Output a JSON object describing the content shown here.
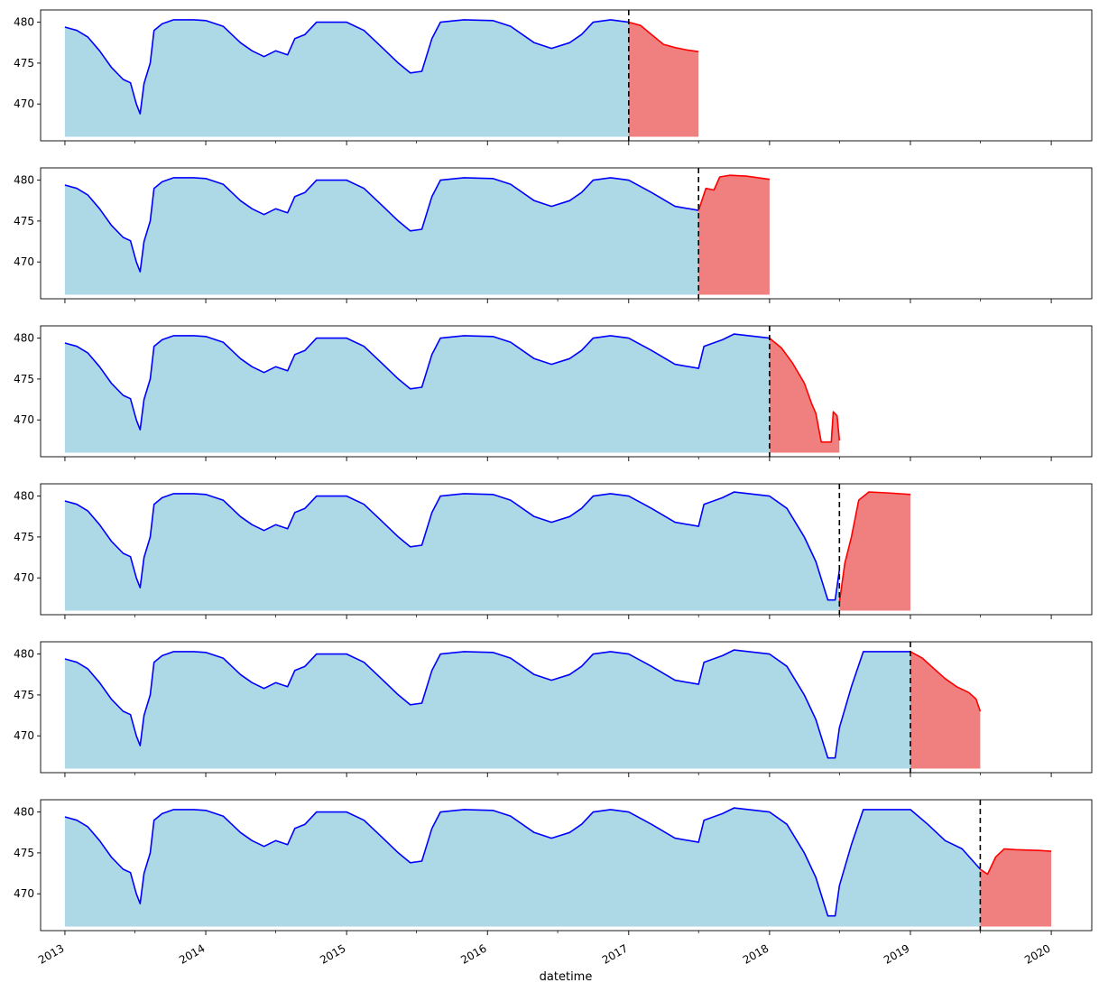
{
  "chart_data": {
    "type": "area",
    "layout": "6 stacked panels sharing the date x-axis",
    "xlabel": "datetime",
    "x_ticks": [
      "2013",
      "2014",
      "2015",
      "2016",
      "2017",
      "2018",
      "2019",
      "2020"
    ],
    "x_range": [
      "2012-10-30",
      "2020-04-15"
    ],
    "ylim": [
      465.5,
      481.5
    ],
    "y_ticks": [
      470,
      475,
      480
    ],
    "fill_baseline": 466,
    "colors": {
      "history_line": "#0000ff",
      "history_fill": "#add8e6",
      "forecast_line": "#ff0000",
      "forecast_fill": "#f08080",
      "cutoff_line": "#000000"
    },
    "history": [
      [
        "2013-01-01",
        479.4
      ],
      [
        "2013-02-01",
        479.0
      ],
      [
        "2013-03-01",
        478.2
      ],
      [
        "2013-04-01",
        476.5
      ],
      [
        "2013-05-01",
        474.5
      ],
      [
        "2013-06-01",
        473.0
      ],
      [
        "2013-06-20",
        472.6
      ],
      [
        "2013-07-05",
        470.0
      ],
      [
        "2013-07-15",
        468.8
      ],
      [
        "2013-07-25",
        472.5
      ],
      [
        "2013-08-10",
        475.0
      ],
      [
        "2013-08-20",
        479.0
      ],
      [
        "2013-09-10",
        479.8
      ],
      [
        "2013-10-10",
        480.3
      ],
      [
        "2013-12-01",
        480.3
      ],
      [
        "2014-01-01",
        480.2
      ],
      [
        "2014-02-15",
        479.5
      ],
      [
        "2014-04-01",
        477.5
      ],
      [
        "2014-05-01",
        476.5
      ],
      [
        "2014-06-01",
        475.8
      ],
      [
        "2014-07-01",
        476.5
      ],
      [
        "2014-08-01",
        476.0
      ],
      [
        "2014-08-20",
        478.0
      ],
      [
        "2014-09-15",
        478.5
      ],
      [
        "2014-10-15",
        480.0
      ],
      [
        "2015-01-01",
        480.0
      ],
      [
        "2015-02-15",
        479.0
      ],
      [
        "2015-04-01",
        477.0
      ],
      [
        "2015-05-15",
        475.0
      ],
      [
        "2015-06-15",
        473.8
      ],
      [
        "2015-07-15",
        474.0
      ],
      [
        "2015-08-10",
        478.0
      ],
      [
        "2015-09-01",
        480.0
      ],
      [
        "2015-11-01",
        480.3
      ],
      [
        "2016-01-15",
        480.2
      ],
      [
        "2016-03-01",
        479.5
      ],
      [
        "2016-05-01",
        477.5
      ],
      [
        "2016-06-15",
        476.8
      ],
      [
        "2016-08-01",
        477.5
      ],
      [
        "2016-09-01",
        478.5
      ],
      [
        "2016-10-01",
        480.0
      ],
      [
        "2016-11-15",
        480.3
      ],
      [
        "2017-01-01",
        480.0
      ],
      [
        "2017-03-01",
        478.5
      ],
      [
        "2017-05-01",
        476.8
      ],
      [
        "2017-07-01",
        476.3
      ],
      [
        "2017-07-15",
        479.0
      ],
      [
        "2017-09-01",
        479.8
      ],
      [
        "2017-10-01",
        480.5
      ],
      [
        "2018-01-01",
        480.0
      ],
      [
        "2018-02-15",
        478.5
      ],
      [
        "2018-04-01",
        475.0
      ],
      [
        "2018-05-01",
        472.0
      ],
      [
        "2018-06-01",
        467.3
      ],
      [
        "2018-06-20",
        467.3
      ],
      [
        "2018-07-01",
        471.0
      ],
      [
        "2018-08-01",
        476.0
      ],
      [
        "2018-09-01",
        480.3
      ],
      [
        "2019-01-01",
        480.3
      ],
      [
        "2019-02-15",
        478.5
      ],
      [
        "2019-04-01",
        476.5
      ],
      [
        "2019-05-15",
        475.5
      ],
      [
        "2019-07-01",
        473.0
      ]
    ],
    "panels": [
      {
        "cutoff": "2017-01-01",
        "forecast": [
          [
            "2017-01-01",
            480.0
          ],
          [
            "2017-02-01",
            479.6
          ],
          [
            "2017-03-01",
            478.5
          ],
          [
            "2017-04-01",
            477.3
          ],
          [
            "2017-05-01",
            476.9
          ],
          [
            "2017-06-01",
            476.6
          ],
          [
            "2017-07-01",
            476.4
          ]
        ]
      },
      {
        "cutoff": "2017-07-01",
        "forecast": [
          [
            "2017-07-01",
            476.3
          ],
          [
            "2017-07-20",
            479.0
          ],
          [
            "2017-08-10",
            478.8
          ],
          [
            "2017-08-25",
            480.4
          ],
          [
            "2017-09-20",
            480.6
          ],
          [
            "2017-11-01",
            480.5
          ],
          [
            "2018-01-01",
            480.1
          ]
        ]
      },
      {
        "cutoff": "2018-01-01",
        "forecast": [
          [
            "2018-01-01",
            480.0
          ],
          [
            "2018-02-01",
            478.8
          ],
          [
            "2018-03-01",
            477.0
          ],
          [
            "2018-04-01",
            474.5
          ],
          [
            "2018-04-20",
            472.0
          ],
          [
            "2018-05-01",
            470.8
          ],
          [
            "2018-05-15",
            467.3
          ],
          [
            "2018-06-10",
            467.3
          ],
          [
            "2018-06-15",
            471.0
          ],
          [
            "2018-06-25",
            470.5
          ],
          [
            "2018-07-01",
            467.5
          ]
        ]
      },
      {
        "cutoff": "2018-07-01",
        "forecast": [
          [
            "2018-07-01",
            467.0
          ],
          [
            "2018-07-15",
            471.8
          ],
          [
            "2018-08-01",
            475.0
          ],
          [
            "2018-08-20",
            479.5
          ],
          [
            "2018-09-15",
            480.5
          ],
          [
            "2018-11-01",
            480.4
          ],
          [
            "2019-01-01",
            480.2
          ]
        ]
      },
      {
        "cutoff": "2019-01-01",
        "forecast": [
          [
            "2019-01-01",
            480.3
          ],
          [
            "2019-02-01",
            479.5
          ],
          [
            "2019-03-01",
            478.3
          ],
          [
            "2019-04-01",
            477.0
          ],
          [
            "2019-05-01",
            476.0
          ],
          [
            "2019-06-01",
            475.3
          ],
          [
            "2019-06-20",
            474.5
          ],
          [
            "2019-07-01",
            473.0
          ]
        ]
      },
      {
        "cutoff": "2019-07-01",
        "forecast": [
          [
            "2019-07-01",
            473.0
          ],
          [
            "2019-07-20",
            472.4
          ],
          [
            "2019-08-10",
            474.5
          ],
          [
            "2019-09-01",
            475.5
          ],
          [
            "2019-10-01",
            475.4
          ],
          [
            "2019-12-01",
            475.3
          ],
          [
            "2020-01-01",
            475.2
          ]
        ]
      }
    ]
  }
}
